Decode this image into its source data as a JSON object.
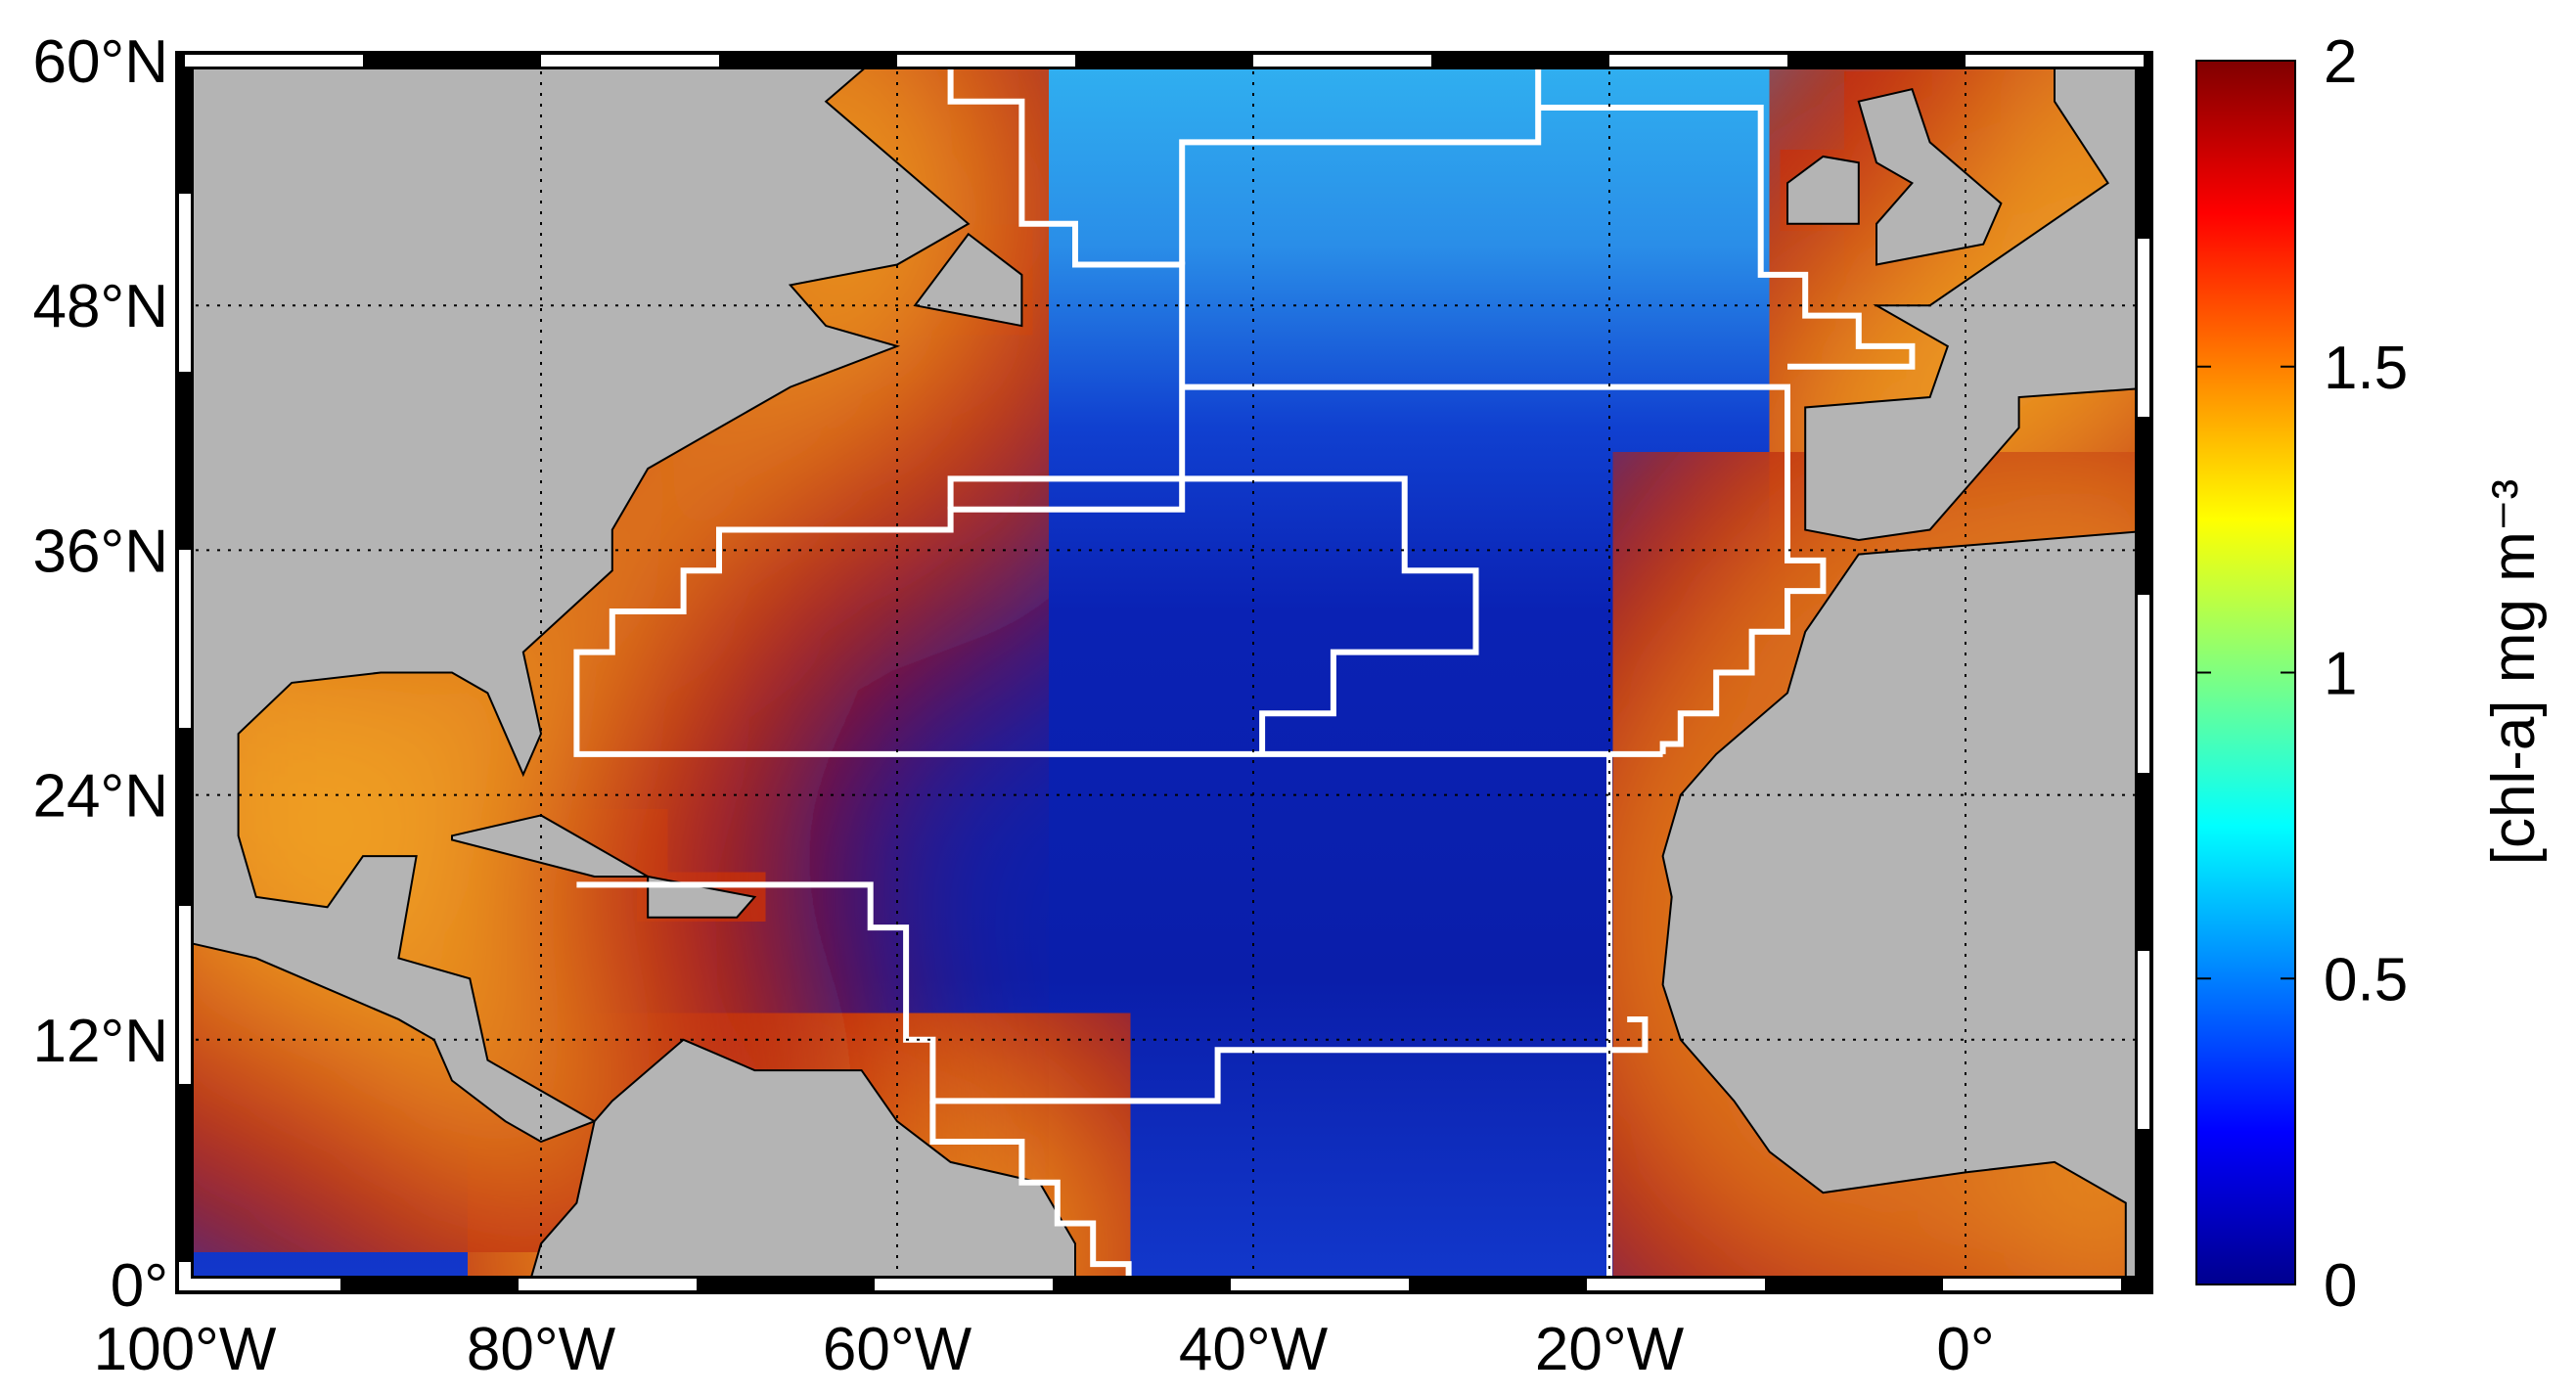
{
  "chart_data": {
    "type": "map",
    "xlim": [
      -100,
      10
    ],
    "ylim": [
      0,
      60
    ],
    "xticks": [
      {
        "value": -100,
        "label": "100°W"
      },
      {
        "value": -80,
        "label": "80°W"
      },
      {
        "value": -60,
        "label": "60°W"
      },
      {
        "value": -40,
        "label": "40°W"
      },
      {
        "value": -20,
        "label": "20°W"
      },
      {
        "value": 0,
        "label": "0°"
      }
    ],
    "yticks": [
      {
        "value": 0,
        "label": "0°"
      },
      {
        "value": 12,
        "label": "12°N"
      },
      {
        "value": 24,
        "label": "24°N"
      },
      {
        "value": 36,
        "label": "36°N"
      },
      {
        "value": 48,
        "label": "48°N"
      },
      {
        "value": 60,
        "label": "60°N"
      }
    ],
    "grid": true,
    "colorbar": {
      "label": "[chl-a] mg m⁻³",
      "lim": [
        0,
        2
      ],
      "ticks": [
        0,
        0.5,
        1,
        1.5,
        2
      ]
    }
  }
}
